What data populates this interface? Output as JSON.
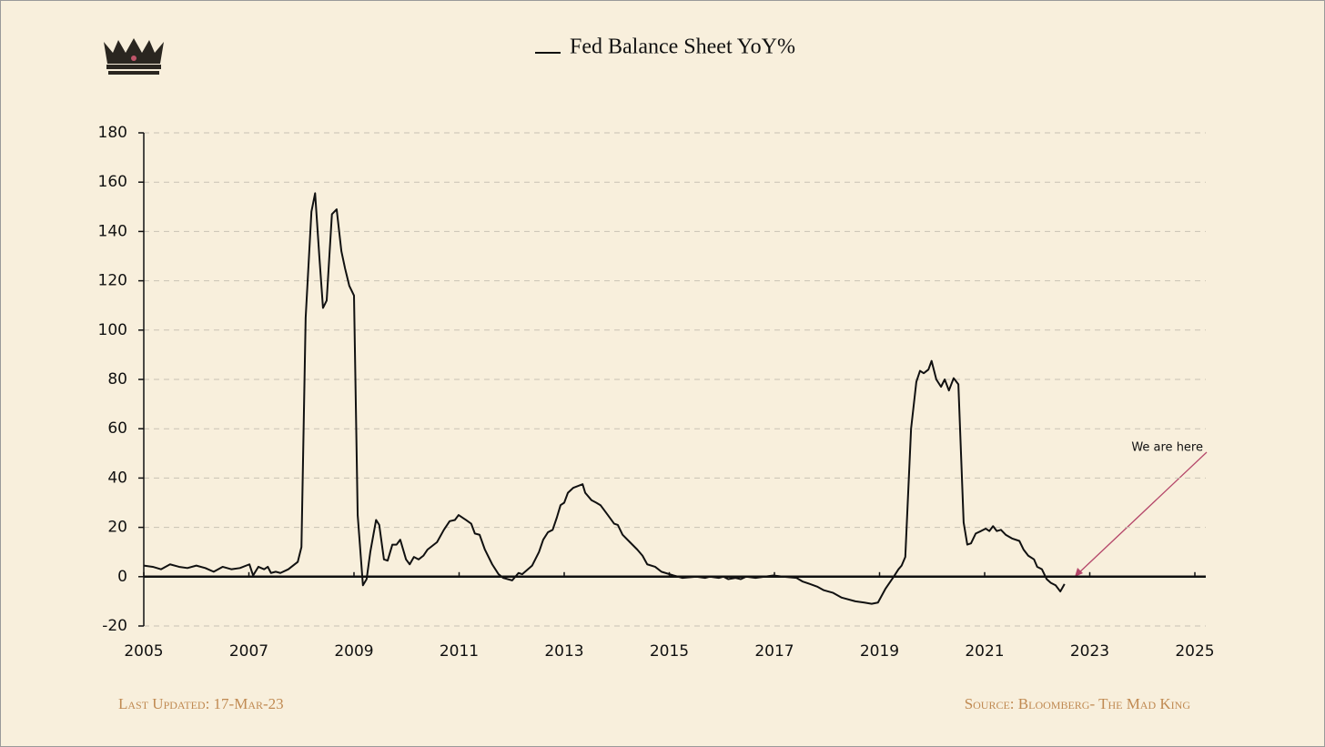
{
  "chart_data": {
    "type": "line",
    "series": [
      {
        "name": "Fed Balance Sheet YoY%",
        "color": "#111111",
        "values": [
          4.5,
          4,
          3,
          5,
          4,
          3.5,
          4.5,
          3.5,
          2,
          4,
          3,
          3.5,
          5,
          0.5,
          4,
          3,
          4,
          1.5,
          2,
          1.5,
          3,
          6,
          12,
          105,
          148,
          155.5,
          130,
          109,
          112,
          147,
          149,
          132,
          125,
          118,
          114,
          25,
          -3.5,
          -1,
          10,
          23,
          21,
          7,
          6.5,
          13,
          13,
          15,
          7,
          5,
          8,
          7,
          8.5,
          11,
          14,
          19,
          22.5,
          23,
          25,
          23,
          21.5,
          17.5,
          17,
          11,
          5,
          1,
          -0.5,
          -1.5,
          1.5,
          1,
          4.5,
          10,
          15,
          18,
          19,
          24,
          29,
          30,
          34,
          36,
          37.5,
          34,
          31,
          30,
          29,
          25,
          21.5,
          21,
          17,
          14,
          11,
          8.5,
          5,
          4,
          2,
          0.5,
          -0.5,
          0,
          -0.5,
          0,
          -0.5,
          0,
          -1,
          -0.5,
          -1,
          0,
          -0.5,
          0.5,
          0,
          -0.5,
          -2,
          -3,
          -4,
          -5.5,
          -6.5,
          -8.5,
          -10,
          -10.5,
          -11,
          -10.5,
          -5,
          0,
          3,
          4.5,
          8,
          60,
          79,
          83.5,
          82.5,
          84,
          87.5,
          80,
          77,
          80,
          75.5,
          80.5,
          78,
          22,
          13,
          13.5,
          17.5,
          18.5,
          19.5,
          18.5,
          20.5,
          18.5,
          19,
          17,
          15.5,
          14.5,
          11,
          8.5,
          7,
          4,
          3,
          -1,
          -2.5,
          -3.5,
          -6,
          -3
        ]
      }
    ],
    "x": [
      2005.0,
      2005.17,
      2005.33,
      2005.5,
      2005.67,
      2005.83,
      2006.0,
      2006.17,
      2006.33,
      2006.5,
      2006.67,
      2006.83,
      2007.01,
      2007.08,
      2007.18,
      2007.29,
      2007.36,
      2007.42,
      2007.51,
      2007.6,
      2007.75,
      2007.93,
      2008.0,
      2008.08,
      2008.19,
      2008.26,
      2008.34,
      2008.41,
      2008.48,
      2008.58,
      2008.67,
      2008.76,
      2008.83,
      2008.91,
      2009.0,
      2009.07,
      2009.17,
      2009.24,
      2009.31,
      2009.42,
      2009.48,
      2009.57,
      2009.64,
      2009.73,
      2009.81,
      2009.88,
      2009.99,
      2010.06,
      2010.14,
      2010.23,
      2010.32,
      2010.4,
      2010.58,
      2010.71,
      2010.82,
      2010.92,
      2010.99,
      2011.13,
      2011.23,
      2011.3,
      2011.39,
      2011.49,
      2011.63,
      2011.75,
      2011.84,
      2012.01,
      2012.13,
      2012.2,
      2012.39,
      2012.52,
      2012.6,
      2012.69,
      2012.78,
      2012.86,
      2012.93,
      2013.0,
      2013.07,
      2013.17,
      2013.35,
      2013.4,
      2013.52,
      2013.61,
      2013.69,
      2013.83,
      2013.95,
      2014.02,
      2014.11,
      2014.25,
      2014.39,
      2014.49,
      2014.58,
      2014.73,
      2014.85,
      2015.08,
      2015.25,
      2015.51,
      2015.68,
      2015.77,
      2015.94,
      2016.03,
      2016.12,
      2016.26,
      2016.36,
      2016.46,
      2016.64,
      2016.98,
      2017.16,
      2017.42,
      2017.54,
      2017.68,
      2017.81,
      2017.94,
      2018.11,
      2018.28,
      2018.54,
      2018.71,
      2018.85,
      2018.97,
      2019.11,
      2019.27,
      2019.36,
      2019.42,
      2019.49,
      2019.6,
      2019.7,
      2019.77,
      2019.84,
      2019.93,
      2019.99,
      2020.08,
      2020.17,
      2020.24,
      2020.32,
      2020.41,
      2020.5,
      2020.6,
      2020.67,
      2020.74,
      2020.83,
      2020.93,
      2021.02,
      2021.09,
      2021.16,
      2021.23,
      2021.31,
      2021.4,
      2021.52,
      2021.66,
      2021.74,
      2021.83,
      2021.94,
      2022.0,
      2022.09,
      2022.18,
      2022.26,
      2022.35,
      2022.44,
      2022.52
    ],
    "xlim": [
      2005,
      2025
    ],
    "xticks": [
      2005,
      2007,
      2009,
      2011,
      2013,
      2015,
      2017,
      2019,
      2021,
      2023,
      2025
    ],
    "ylim": [
      -20,
      180
    ],
    "yticks": [
      -20,
      0,
      20,
      40,
      60,
      80,
      100,
      120,
      140,
      160,
      180
    ],
    "grid": true,
    "legend": "top",
    "annotation": "We are here",
    "footer_left": "Last Updated: 17-Mar-23",
    "footer_right": "Source: Bloomberg- The Mad King"
  }
}
